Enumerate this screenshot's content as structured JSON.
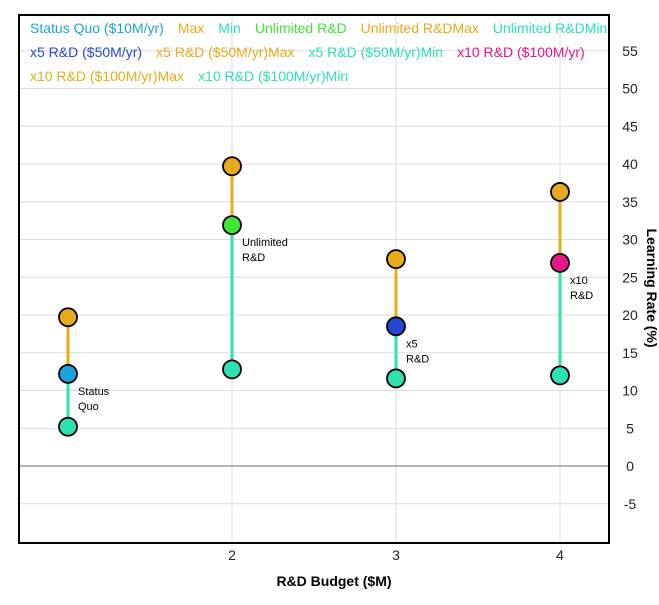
{
  "chart_data": {
    "type": "scatter",
    "xlabel": "R&D Budget ($M)",
    "ylabel": "Learning Rate (%)",
    "xlim": [
      1,
      4.3
    ],
    "ylim": [
      -10,
      60
    ],
    "x_ticks": [
      "2",
      "3",
      "4"
    ],
    "y_ticks": [
      "55",
      "50",
      "45",
      "40",
      "35",
      "30",
      "25",
      "20",
      "15",
      "10",
      "5",
      "0",
      "-5"
    ],
    "grid": true,
    "legend_position": "top",
    "legend": [
      {
        "label": "Status Quo ($10M/yr)",
        "color": "#1ba3e0"
      },
      {
        "label": "Max",
        "color": "#e8ab1c"
      },
      {
        "label": "Min",
        "color": "#2fe0b0"
      },
      {
        "label": "Unlimited R&D",
        "color": "#3ee636"
      },
      {
        "label": "Unlimited R&DMax",
        "color": "#e8ab1c"
      },
      {
        "label": "Unlimited R&DMin",
        "color": "#2fe0b0"
      },
      {
        "label": "x5 R&D ($50M/yr)",
        "color": "#2547d6"
      },
      {
        "label": "x5 R&D ($50M/yr)Max",
        "color": "#e8ab1c"
      },
      {
        "label": "x5 R&D ($50M/yr)Min",
        "color": "#2fe0b0"
      },
      {
        "label": "x10 R&D ($100M/yr)",
        "color": "#e8158c"
      },
      {
        "label": "x10 R&D ($100M/yr)Max",
        "color": "#e8ab1c"
      },
      {
        "label": "x10 R&D ($100M/yr)Min",
        "color": "#2fe0b0"
      }
    ],
    "series": [
      {
        "name": "Status Quo ($10M/yr)",
        "label_lines": [
          "Status",
          "Quo"
        ],
        "x": 1.0,
        "value": 12.2,
        "max": 19.7,
        "min": 5.2,
        "color": "#1ba3e0"
      },
      {
        "name": "Unlimited R&D",
        "label_lines": [
          "Unlimited",
          "R&D"
        ],
        "x": 2.0,
        "value": 31.9,
        "max": 39.7,
        "min": 12.8,
        "color": "#3ee636"
      },
      {
        "name": "x5 R&D ($50M/yr)",
        "label_lines": [
          "x5",
          "R&D"
        ],
        "x": 3.0,
        "value": 18.5,
        "max": 27.4,
        "min": 11.6,
        "color": "#2547d6"
      },
      {
        "name": "x10 R&D ($100M/yr)",
        "label_lines": [
          "x10",
          "R&D"
        ],
        "x": 4.0,
        "value": 26.9,
        "max": 36.3,
        "min": 12.0,
        "color": "#e8158c"
      }
    ],
    "max_color": "#e8ab1c",
    "min_color": "#2fe0b0"
  }
}
